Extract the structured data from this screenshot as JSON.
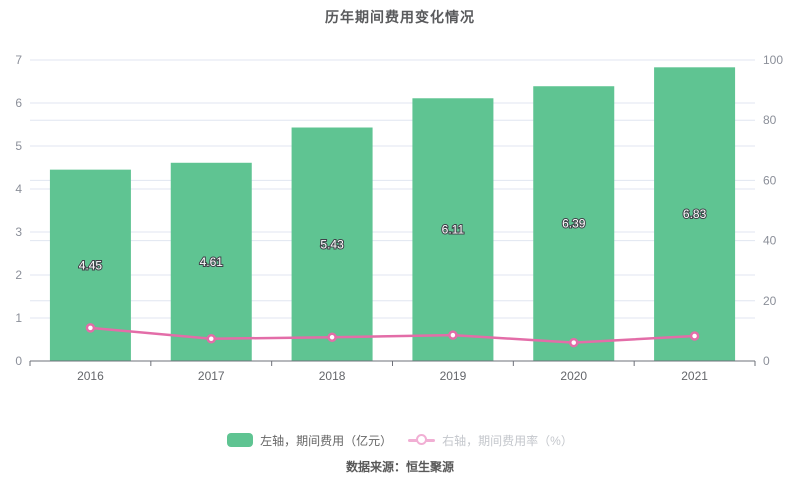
{
  "chart_data": {
    "type": "bar",
    "title": "历年期间费用变化情况",
    "categories": [
      "2016",
      "2017",
      "2018",
      "2019",
      "2020",
      "2021"
    ],
    "series": [
      {
        "name": "左轴，期间费用（亿元）",
        "type": "bar",
        "axis": "left",
        "values": [
          4.45,
          4.61,
          5.43,
          6.11,
          6.39,
          6.83
        ],
        "labels": [
          "4.45",
          "4.61",
          "5.43",
          "6.11",
          "6.39",
          "6.83"
        ],
        "color": "#5fc492"
      },
      {
        "name": "右轴，期间费用率（%）",
        "type": "line",
        "axis": "right",
        "values": [
          11.0,
          7.4,
          7.9,
          8.6,
          6.1,
          8.3
        ],
        "color": "#e36da8"
      }
    ],
    "left_axis": {
      "min": 0,
      "max": 7,
      "interval": 1,
      "ticks": [
        0,
        1,
        2,
        3,
        4,
        5,
        6,
        7
      ]
    },
    "right_axis": {
      "min": 0,
      "max": 100,
      "interval": 20,
      "ticks": [
        0,
        20,
        40,
        60,
        80,
        100
      ]
    },
    "grid": true,
    "legend_position": "bottom",
    "source": "数据来源：恒生聚源",
    "colors": {
      "grid_line": "#e0e6f1",
      "axis_line": "#6e7079",
      "axis_label": "#8b8f99",
      "x_label": "#64666b",
      "bar_label_fill": "#ffffff",
      "bar_label_stroke": "#404049",
      "legend_active_text": "#666666",
      "legend_inactive_text": "#c4c7cc",
      "legend_inactive_marker": "#f1afd4"
    }
  }
}
